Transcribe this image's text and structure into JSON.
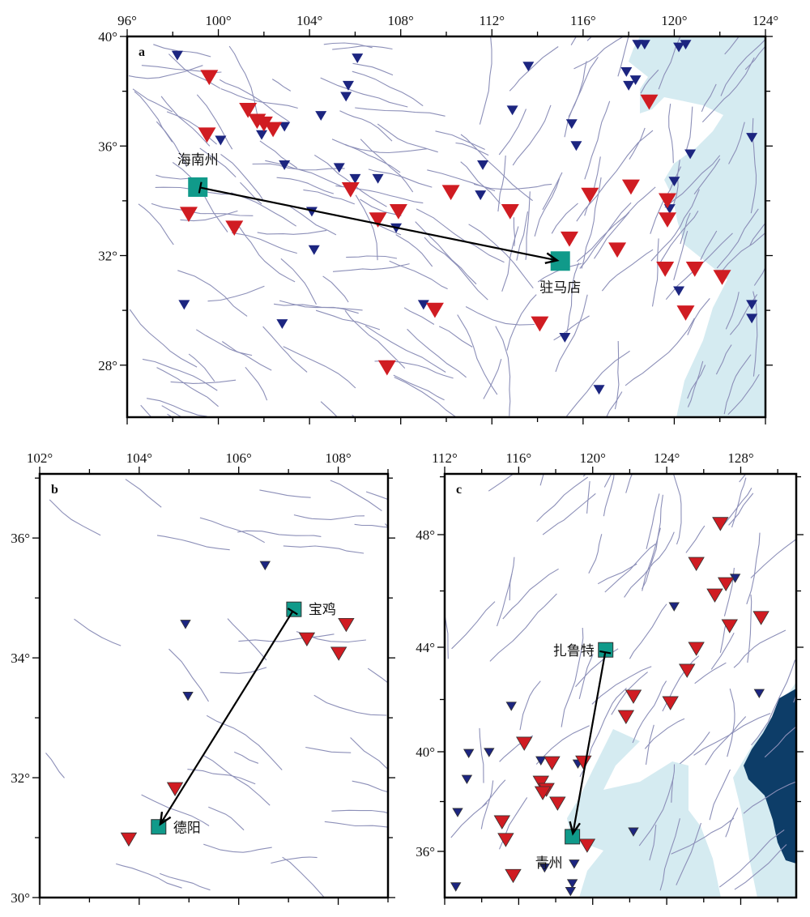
{
  "colors": {
    "major_station": "#d01c22",
    "minor_station": "#1c2580",
    "site": "#109a8a",
    "fault": "#8c8fb8",
    "sea_shallow": "#d5ebf1",
    "sea_deep": "#0d3d68",
    "arrow": "#000000"
  },
  "panels": [
    {
      "id": "a",
      "letter": "a",
      "lon_range": [
        96,
        124
      ],
      "lat_range": [
        26.1,
        40
      ],
      "lon_ticks": [
        {
          "v": 96,
          "t": "96°"
        },
        {
          "v": 100,
          "t": "100°"
        },
        {
          "v": 104,
          "t": "104°"
        },
        {
          "v": 108,
          "t": "108°"
        },
        {
          "v": 112,
          "t": "112°"
        },
        {
          "v": 116,
          "t": "116°"
        },
        {
          "v": 120,
          "t": "120°"
        },
        {
          "v": 124,
          "t": "124°"
        }
      ],
      "lat_ticks": [
        {
          "v": 40,
          "t": "40°"
        },
        {
          "v": 36,
          "t": "36°"
        },
        {
          "v": 32,
          "t": "32°"
        },
        {
          "v": 28,
          "t": "28°"
        }
      ],
      "sites": [
        {
          "name": "海南州",
          "lon": 99.1,
          "lat": 34.5
        },
        {
          "name": "驻马店",
          "lon": 115.0,
          "lat": 31.8
        }
      ],
      "arrow": {
        "from": 0,
        "to": 1
      },
      "red_stations": [
        [
          99.6,
          38.5
        ],
        [
          101.3,
          37.3
        ],
        [
          101.7,
          36.9
        ],
        [
          102.0,
          36.8
        ],
        [
          102.4,
          36.6
        ],
        [
          99.5,
          36.4
        ],
        [
          98.7,
          33.5
        ],
        [
          100.7,
          33.0
        ],
        [
          105.8,
          34.4
        ],
        [
          107.0,
          33.3
        ],
        [
          107.9,
          33.6
        ],
        [
          110.2,
          34.3
        ],
        [
          112.8,
          33.6
        ],
        [
          115.4,
          32.6
        ],
        [
          116.3,
          34.2
        ],
        [
          118.1,
          34.5
        ],
        [
          118.9,
          37.6
        ],
        [
          117.5,
          32.2
        ],
        [
          119.7,
          34.0
        ],
        [
          119.7,
          33.3
        ],
        [
          119.6,
          31.5
        ],
        [
          120.9,
          31.5
        ],
        [
          122.1,
          31.2
        ],
        [
          120.5,
          29.9
        ],
        [
          109.5,
          30.0
        ],
        [
          114.1,
          29.5
        ],
        [
          107.4,
          27.9
        ]
      ],
      "blue_stations": [
        [
          98.2,
          39.3
        ],
        [
          106.1,
          39.2
        ],
        [
          105.7,
          38.2
        ],
        [
          105.6,
          37.8
        ],
        [
          104.5,
          37.1
        ],
        [
          101.9,
          36.4
        ],
        [
          102.9,
          36.7
        ],
        [
          100.1,
          36.2
        ],
        [
          102.9,
          35.3
        ],
        [
          105.3,
          35.2
        ],
        [
          107.0,
          34.8
        ],
        [
          106.0,
          34.8
        ],
        [
          104.1,
          33.6
        ],
        [
          107.8,
          33.0
        ],
        [
          104.2,
          32.2
        ],
        [
          98.5,
          30.2
        ],
        [
          102.8,
          29.5
        ],
        [
          113.6,
          38.9
        ],
        [
          112.9,
          37.3
        ],
        [
          115.5,
          36.8
        ],
        [
          115.7,
          36.0
        ],
        [
          111.6,
          35.3
        ],
        [
          111.5,
          34.2
        ],
        [
          118.4,
          39.7
        ],
        [
          118.7,
          39.7
        ],
        [
          120.2,
          39.6
        ],
        [
          120.5,
          39.7
        ],
        [
          117.9,
          38.7
        ],
        [
          118.3,
          38.4
        ],
        [
          118.0,
          38.2
        ],
        [
          123.4,
          36.3
        ],
        [
          120.7,
          35.7
        ],
        [
          120.0,
          34.7
        ],
        [
          119.8,
          33.7
        ],
        [
          120.2,
          30.7
        ],
        [
          123.4,
          30.2
        ],
        [
          123.4,
          29.7
        ],
        [
          115.2,
          29.0
        ],
        [
          116.7,
          27.1
        ],
        [
          109.0,
          30.2
        ]
      ]
    },
    {
      "id": "b",
      "letter": "b",
      "lon_range": [
        102,
        109
      ],
      "lat_range": [
        30,
        37.07
      ],
      "lon_ticks": [
        {
          "v": 102,
          "t": "102°"
        },
        {
          "v": 104,
          "t": "104°"
        },
        {
          "v": 106,
          "t": "106°"
        },
        {
          "v": 108,
          "t": "108°"
        }
      ],
      "lat_ticks": [
        {
          "v": 36,
          "t": "36°"
        },
        {
          "v": 34,
          "t": "34°"
        },
        {
          "v": 32,
          "t": "32°"
        },
        {
          "v": 30,
          "t": "30°"
        }
      ],
      "sites": [
        {
          "name": "宝鸡",
          "lon": 107.11,
          "lat": 34.81
        },
        {
          "name": "德阳",
          "lon": 104.39,
          "lat": 31.18
        }
      ],
      "arrow": {
        "from": 0,
        "to": 1
      },
      "red_stations": [
        [
          108.16,
          34.55
        ],
        [
          107.37,
          34.31
        ],
        [
          108.01,
          34.07
        ],
        [
          104.72,
          31.81
        ],
        [
          103.79,
          30.97
        ]
      ],
      "blue_stations": [
        [
          106.53,
          35.54
        ],
        [
          104.93,
          34.56
        ],
        [
          104.98,
          33.36
        ]
      ]
    },
    {
      "id": "c",
      "letter": "c",
      "lon_range": [
        112,
        131
      ],
      "lat_range": [
        34.1,
        50.1
      ],
      "lon_ticks": [
        {
          "v": 112,
          "t": "112°"
        },
        {
          "v": 116,
          "t": "116°"
        },
        {
          "v": 120,
          "t": "120°"
        },
        {
          "v": 124,
          "t": "124°"
        },
        {
          "v": 128,
          "t": "128°"
        }
      ],
      "lat_ticks": [
        {
          "v": 48,
          "t": "48°"
        },
        {
          "v": 44,
          "t": "44°"
        },
        {
          "v": 40,
          "t": "40°"
        },
        {
          "v": 36,
          "t": "36°"
        }
      ],
      "sites": [
        {
          "name": "扎鲁特",
          "lon": 120.7,
          "lat": 43.9
        },
        {
          "name": "青州",
          "lon": 118.9,
          "lat": 36.59
        }
      ],
      "arrow": {
        "from": 0,
        "to": 1
      },
      "red_stations": [
        [
          126.9,
          48.37
        ],
        [
          125.6,
          46.96
        ],
        [
          127.2,
          46.24
        ],
        [
          126.6,
          45.84
        ],
        [
          129.1,
          45.04
        ],
        [
          127.4,
          44.75
        ],
        [
          125.6,
          43.94
        ],
        [
          125.1,
          43.1
        ],
        [
          122.2,
          42.11
        ],
        [
          124.2,
          41.86
        ],
        [
          121.8,
          41.33
        ],
        [
          116.3,
          40.31
        ],
        [
          117.8,
          39.54
        ],
        [
          119.5,
          39.57
        ],
        [
          117.2,
          38.76
        ],
        [
          117.5,
          38.47
        ],
        [
          117.3,
          38.34
        ],
        [
          118.1,
          37.92
        ],
        [
          115.1,
          37.17
        ],
        [
          115.3,
          36.46
        ],
        [
          119.7,
          36.23
        ],
        [
          115.7,
          34.99
        ]
      ],
      "blue_stations": [
        [
          127.7,
          46.45
        ],
        [
          124.4,
          45.44
        ],
        [
          129.0,
          42.23
        ],
        [
          115.6,
          41.74
        ],
        [
          113.3,
          39.93
        ],
        [
          114.4,
          39.97
        ],
        [
          117.2,
          39.64
        ],
        [
          119.2,
          39.51
        ],
        [
          113.2,
          38.89
        ],
        [
          112.7,
          37.56
        ],
        [
          122.2,
          36.78
        ],
        [
          117.4,
          35.32
        ],
        [
          119.0,
          35.48
        ],
        [
          118.9,
          34.67
        ],
        [
          118.8,
          34.35
        ],
        [
          112.6,
          34.54
        ]
      ]
    }
  ]
}
